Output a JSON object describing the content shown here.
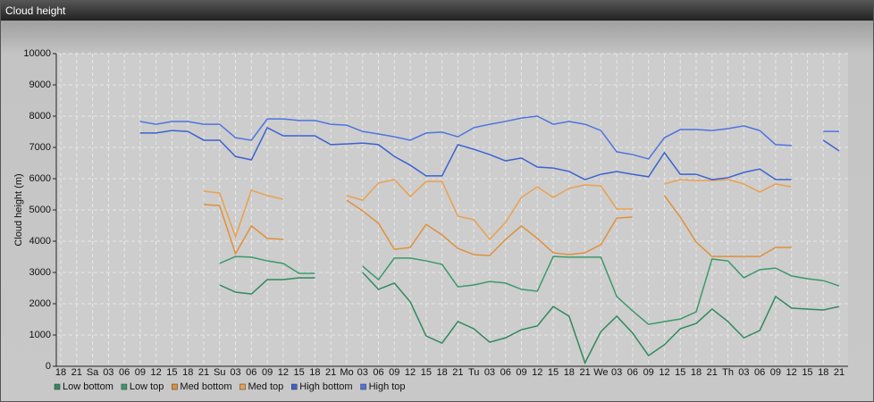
{
  "header": {
    "title": "Cloud height"
  },
  "chart_data": {
    "type": "line",
    "y_label": "Cloud height (m)",
    "categories": [
      "18",
      "21",
      "Sa",
      "03",
      "06",
      "09",
      "12",
      "15",
      "18",
      "21",
      "Su",
      "03",
      "06",
      "09",
      "12",
      "15",
      "18",
      "21",
      "Mo",
      "03",
      "06",
      "09",
      "12",
      "15",
      "18",
      "21",
      "Tu",
      "03",
      "06",
      "09",
      "12",
      "15",
      "18",
      "21",
      "We",
      "03",
      "06",
      "09",
      "12",
      "15",
      "18",
      "21",
      "Th",
      "03",
      "06",
      "09",
      "12",
      "15",
      "18",
      "21"
    ],
    "ylim": [
      0,
      10000
    ],
    "yticks": [
      0,
      1000,
      2000,
      3000,
      4000,
      5000,
      6000,
      7000,
      8000,
      9000,
      10000
    ],
    "grid": true,
    "series": [
      {
        "name": "Low bottom",
        "color": "#2f8a5c",
        "values": [
          null,
          null,
          null,
          null,
          null,
          null,
          null,
          null,
          null,
          null,
          2600,
          2370,
          2310,
          2770,
          2770,
          2830,
          2830,
          null,
          null,
          3000,
          2460,
          2660,
          2060,
          970,
          740,
          1430,
          1200,
          770,
          910,
          1170,
          1290,
          1910,
          1600,
          110,
          1110,
          1600,
          1060,
          340,
          690,
          1200,
          1370,
          1830,
          1430,
          910,
          1140,
          2230,
          1860,
          1830,
          1800,
          1910
        ]
      },
      {
        "name": "Low top",
        "color": "#3a9a6a",
        "values": [
          null,
          null,
          null,
          null,
          null,
          null,
          null,
          null,
          null,
          null,
          3290,
          3510,
          3490,
          3370,
          3290,
          2970,
          2970,
          null,
          null,
          3200,
          2770,
          3460,
          3460,
          3370,
          3260,
          2540,
          2600,
          2710,
          2660,
          2460,
          2400,
          3510,
          3490,
          3490,
          3490,
          2230,
          1770,
          1340,
          1430,
          1510,
          1740,
          3430,
          3370,
          2830,
          3090,
          3140,
          2890,
          2800,
          2740,
          2570
        ]
      },
      {
        "name": "Med bottom",
        "color": "#e0903a",
        "values": [
          null,
          null,
          null,
          null,
          null,
          null,
          null,
          null,
          null,
          5170,
          5140,
          3600,
          4490,
          4090,
          4060,
          null,
          null,
          null,
          5310,
          4970,
          4570,
          3740,
          3800,
          4540,
          4200,
          3770,
          3570,
          3540,
          4060,
          4490,
          4090,
          3630,
          3570,
          3630,
          3890,
          4740,
          4770,
          null,
          5460,
          4770,
          3970,
          3510,
          3510,
          3510,
          3510,
          3800,
          3800,
          null,
          null,
          null
        ]
      },
      {
        "name": "Med top",
        "color": "#eba050",
        "values": [
          null,
          null,
          null,
          null,
          null,
          null,
          null,
          null,
          null,
          5600,
          5540,
          4140,
          5630,
          5460,
          5340,
          null,
          null,
          null,
          5460,
          5310,
          5860,
          5970,
          5430,
          5910,
          5910,
          4800,
          4690,
          4060,
          4600,
          5400,
          5740,
          5400,
          5690,
          5800,
          5770,
          5030,
          5030,
          null,
          5830,
          5970,
          5940,
          5940,
          5970,
          5830,
          5570,
          5830,
          5740,
          null,
          null,
          null
        ]
      },
      {
        "name": "High bottom",
        "color": "#3c62d0",
        "values": [
          null,
          null,
          null,
          null,
          null,
          7460,
          7460,
          7540,
          7510,
          7230,
          7230,
          6710,
          6600,
          7630,
          7370,
          7370,
          7370,
          7090,
          7110,
          7140,
          7090,
          6710,
          6430,
          6090,
          6090,
          7090,
          6940,
          6770,
          6570,
          6660,
          6370,
          6340,
          6230,
          5970,
          6140,
          6230,
          6140,
          6060,
          6830,
          6140,
          6140,
          5970,
          6030,
          6200,
          6310,
          5970,
          5970,
          null,
          7230,
          6890
        ]
      },
      {
        "name": "High top",
        "color": "#4d74e0",
        "values": [
          null,
          null,
          null,
          null,
          null,
          7830,
          7740,
          7830,
          7830,
          7740,
          7740,
          7310,
          7230,
          7910,
          7910,
          7860,
          7860,
          7740,
          7710,
          7510,
          7430,
          7340,
          7230,
          7460,
          7490,
          7340,
          7630,
          7740,
          7830,
          7940,
          8000,
          7740,
          7830,
          7740,
          7540,
          6860,
          6770,
          6630,
          7310,
          7570,
          7570,
          7540,
          7600,
          7690,
          7540,
          7090,
          7060,
          null,
          7510,
          7510
        ]
      }
    ]
  }
}
